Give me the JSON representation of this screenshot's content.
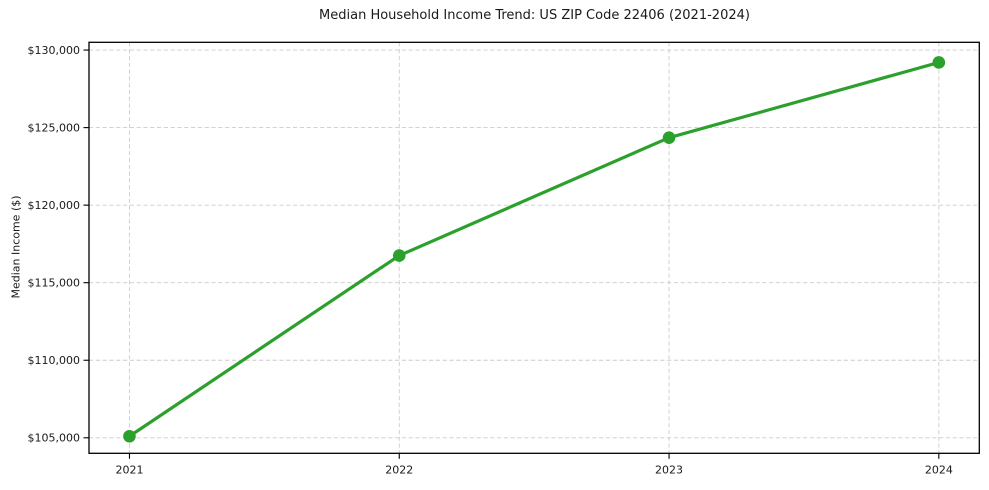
{
  "figure": {
    "background": "#ffffff"
  },
  "chart_data": {
    "type": "line",
    "title": "Median Household Income Trend: US ZIP Code 22406 (2021-2024)",
    "xlabel": "",
    "ylabel": "Median Income ($)",
    "x": [
      2021,
      2022,
      2023,
      2024
    ],
    "series": [
      {
        "name": "Median Income",
        "values": [
          105100,
          116750,
          124350,
          129200
        ],
        "color": "#2ca02c",
        "marker": "circle",
        "line_width": 3.2,
        "marker_radius": 6.3
      }
    ],
    "xlim": [
      2020.85,
      2024.15
    ],
    "ylim": [
      104000,
      130500
    ],
    "xticks": [
      2021,
      2022,
      2023,
      2024
    ],
    "xtick_labels": [
      "2021",
      "2022",
      "2023",
      "2024"
    ],
    "yticks": [
      105000,
      110000,
      115000,
      120000,
      125000,
      130000
    ],
    "ytick_labels": [
      "$105,000",
      "$110,000",
      "$115,000",
      "$120,000",
      "$125,000",
      "$130,000"
    ],
    "grid": true,
    "grid_style": "dashed",
    "grid_color": "#cccccc",
    "axis_color": "#000000",
    "text_color": "#1a1a1a",
    "legend_position": "none"
  }
}
